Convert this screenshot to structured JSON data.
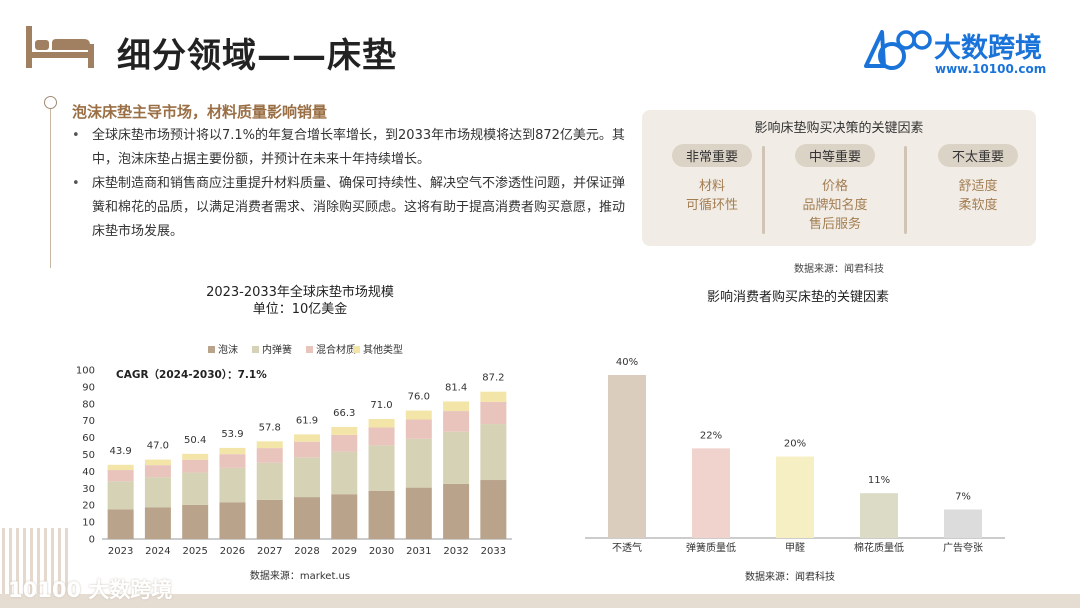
{
  "header": {
    "title": "细分领域——床垫",
    "brand_name": "大数跨境",
    "brand_url": "www.10100.com",
    "logo_text": "10100"
  },
  "intro": {
    "subtitle": "泡沫床垫主导市场，材料质量影响销量",
    "bullets": [
      "全球床垫市场预计将以7.1%的年复合增长率增长，到2033年市场规模将达到872亿美元。其中，泡沫床垫占据主要份额，并预计在未来十年持续增长。",
      "床垫制造商和销售商应注重提升材料质量、确保可持续性、解决空气不渗透性问题，并保证弹簧和棉花的品质，以满足消费者需求、消除购买顾虑。这将有助于提高消费者购买意愿，推动床垫市场发展。"
    ]
  },
  "factors_panel": {
    "title": "影响床垫购买决策的关键因素",
    "columns": [
      {
        "label": "非常重要",
        "items": [
          "材料",
          "可循环性"
        ]
      },
      {
        "label": "中等重要",
        "items": [
          "价格",
          "品牌知名度",
          "售后服务"
        ]
      },
      {
        "label": "不太重要",
        "items": [
          "舒适度",
          "柔软度"
        ]
      }
    ],
    "source": "数据来源：闻君科技"
  },
  "footer": {
    "logo_text": "10100 大数跨境"
  },
  "colors": {
    "foam": "#b9a38b",
    "innerspring": "#d6d2b5",
    "hybrid": "#e9c4bc",
    "other": "#f3e5a8",
    "accent": "#9a6f45",
    "brand": "#1a73d9"
  },
  "chart_data": [
    {
      "type": "bar",
      "stacked": true,
      "title": "2023-2033年全球床垫市场规模",
      "subtitle": "单位：10亿美金",
      "annotation": "CAGR（2024-2030）：7.1%",
      "categories": [
        "2023",
        "2024",
        "2025",
        "2026",
        "2027",
        "2028",
        "2029",
        "2030",
        "2031",
        "2032",
        "2033"
      ],
      "totals": [
        43.9,
        47.0,
        50.4,
        53.9,
        57.8,
        61.9,
        66.3,
        71.0,
        76.0,
        81.4,
        87.2
      ],
      "total_labels": [
        "43.9",
        "47.0",
        "50.4",
        "53.9",
        "57.8",
        "61.9",
        "66.3",
        "71.0",
        "76.0",
        "81.4",
        "87.2"
      ],
      "series": [
        {
          "name": "泡沫",
          "values": [
            17.5,
            18.8,
            20.2,
            21.6,
            23.1,
            24.8,
            26.5,
            28.4,
            30.4,
            32.6,
            34.9
          ]
        },
        {
          "name": "内弹簧",
          "values": [
            16.7,
            17.8,
            19.1,
            20.5,
            22.0,
            23.5,
            25.2,
            27.0,
            28.9,
            30.9,
            33.1
          ]
        },
        {
          "name": "混合材质",
          "values": [
            6.6,
            7.1,
            7.6,
            8.1,
            8.7,
            9.3,
            9.9,
            10.6,
            11.4,
            12.2,
            13.1
          ]
        },
        {
          "name": "其他类型",
          "values": [
            3.1,
            3.3,
            3.5,
            3.7,
            4.0,
            4.3,
            4.7,
            5.0,
            5.3,
            5.7,
            6.1
          ]
        }
      ],
      "ylim": [
        0,
        100
      ],
      "yticks": [
        "0",
        "10",
        "20",
        "30",
        "40",
        "50",
        "60",
        "70",
        "80",
        "90",
        "100"
      ],
      "legend": "top",
      "source": "数据来源：market.us"
    },
    {
      "type": "bar",
      "title": "影响消费者购买床垫的关键因素",
      "categories": [
        "不透气",
        "弹簧质量低",
        "甲醛",
        "棉花质量低",
        "广告夸张"
      ],
      "values": [
        40,
        22,
        20,
        11,
        7
      ],
      "value_labels": [
        "40%",
        "22%",
        "20%",
        "11%",
        "7%"
      ],
      "bar_colors": [
        "#dacdbd",
        "#f1d3cd",
        "#f6efc4",
        "#dcdcc6",
        "#dcdcdc"
      ],
      "ylim": [
        0,
        45
      ],
      "source": "数据来源：闻君科技"
    }
  ]
}
